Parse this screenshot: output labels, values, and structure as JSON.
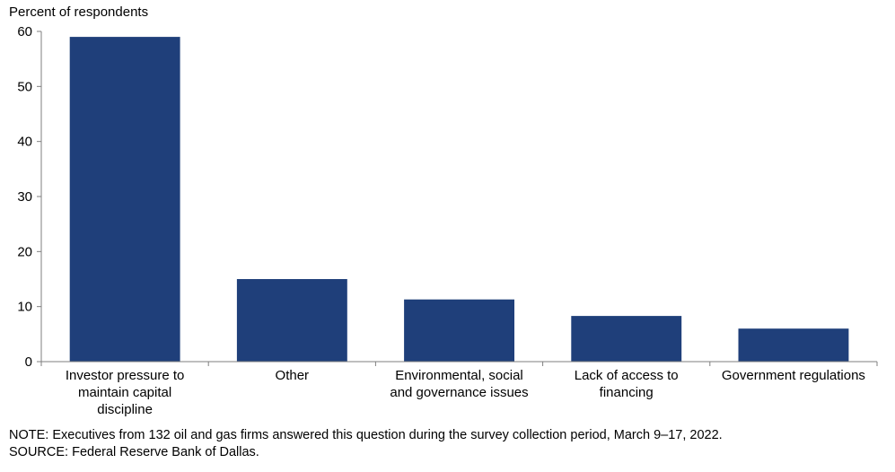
{
  "chart_data": {
    "type": "bar",
    "ylabel": "Percent of respondents",
    "ylim": [
      0,
      60
    ],
    "yticks": [
      0,
      10,
      20,
      30,
      40,
      50,
      60
    ],
    "categories": [
      [
        "Investor pressure to",
        "maintain capital",
        "discipline"
      ],
      [
        "Other"
      ],
      [
        "Environmental, social",
        "and governance issues"
      ],
      [
        "Lack of access to",
        "financing"
      ],
      [
        "Government regulations"
      ]
    ],
    "values": [
      59,
      15,
      11.3,
      8.3,
      6
    ],
    "bar_color": "#1f3f7a",
    "grid": false
  },
  "footer": {
    "note": "NOTE:  Executives  from 132 oil and gas firms answered this question during the survey collection period, March 9–17, 2022.",
    "source": "SOURCE:  Federal Reserve Bank of Dallas."
  }
}
